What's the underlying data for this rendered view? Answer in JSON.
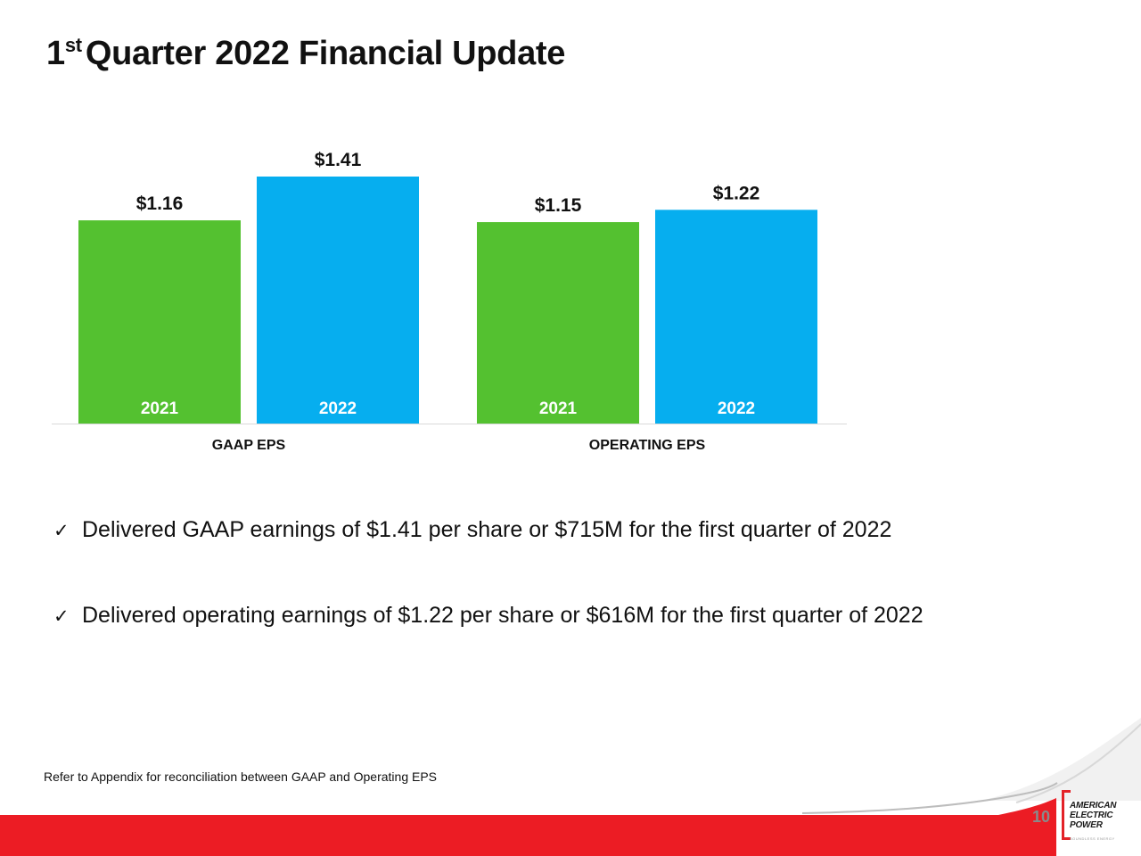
{
  "slide": {
    "title_sup": "st",
    "title_number": "1",
    "title_rest": "Quarter 2022 Financial Update",
    "footnote": "Refer to Appendix for reconciliation between GAAP and Operating EPS",
    "page_number": "10"
  },
  "bullets": [
    {
      "check": "✓",
      "text": "Delivered GAAP earnings of $1.41 per share or $715M for the first quarter of 2022"
    },
    {
      "check": "✓",
      "text": "Delivered operating earnings of $1.22 per share or $616M for the first quarter of 2022"
    }
  ],
  "logo": {
    "line1": "AMERICAN",
    "line2": "ELECTRIC",
    "line3": "POWER",
    "tagline": "BOUNDLESS ENERGY"
  },
  "colors": {
    "green": "#54c130",
    "blue": "#06aeef",
    "red": "#ec1c24"
  },
  "chart_data": {
    "type": "bar",
    "groups": [
      "GAAP EPS",
      "OPERATING EPS"
    ],
    "categories": [
      "2021",
      "2022"
    ],
    "series": [
      {
        "group": "GAAP EPS",
        "values": [
          1.16,
          1.41
        ],
        "labels": [
          "$1.16",
          "$1.41"
        ]
      },
      {
        "group": "OPERATING EPS",
        "values": [
          1.15,
          1.22
        ],
        "labels": [
          "$1.15",
          "$1.22"
        ]
      }
    ],
    "ylim": [
      0,
      1.41
    ],
    "grid": false,
    "legend": "none"
  }
}
